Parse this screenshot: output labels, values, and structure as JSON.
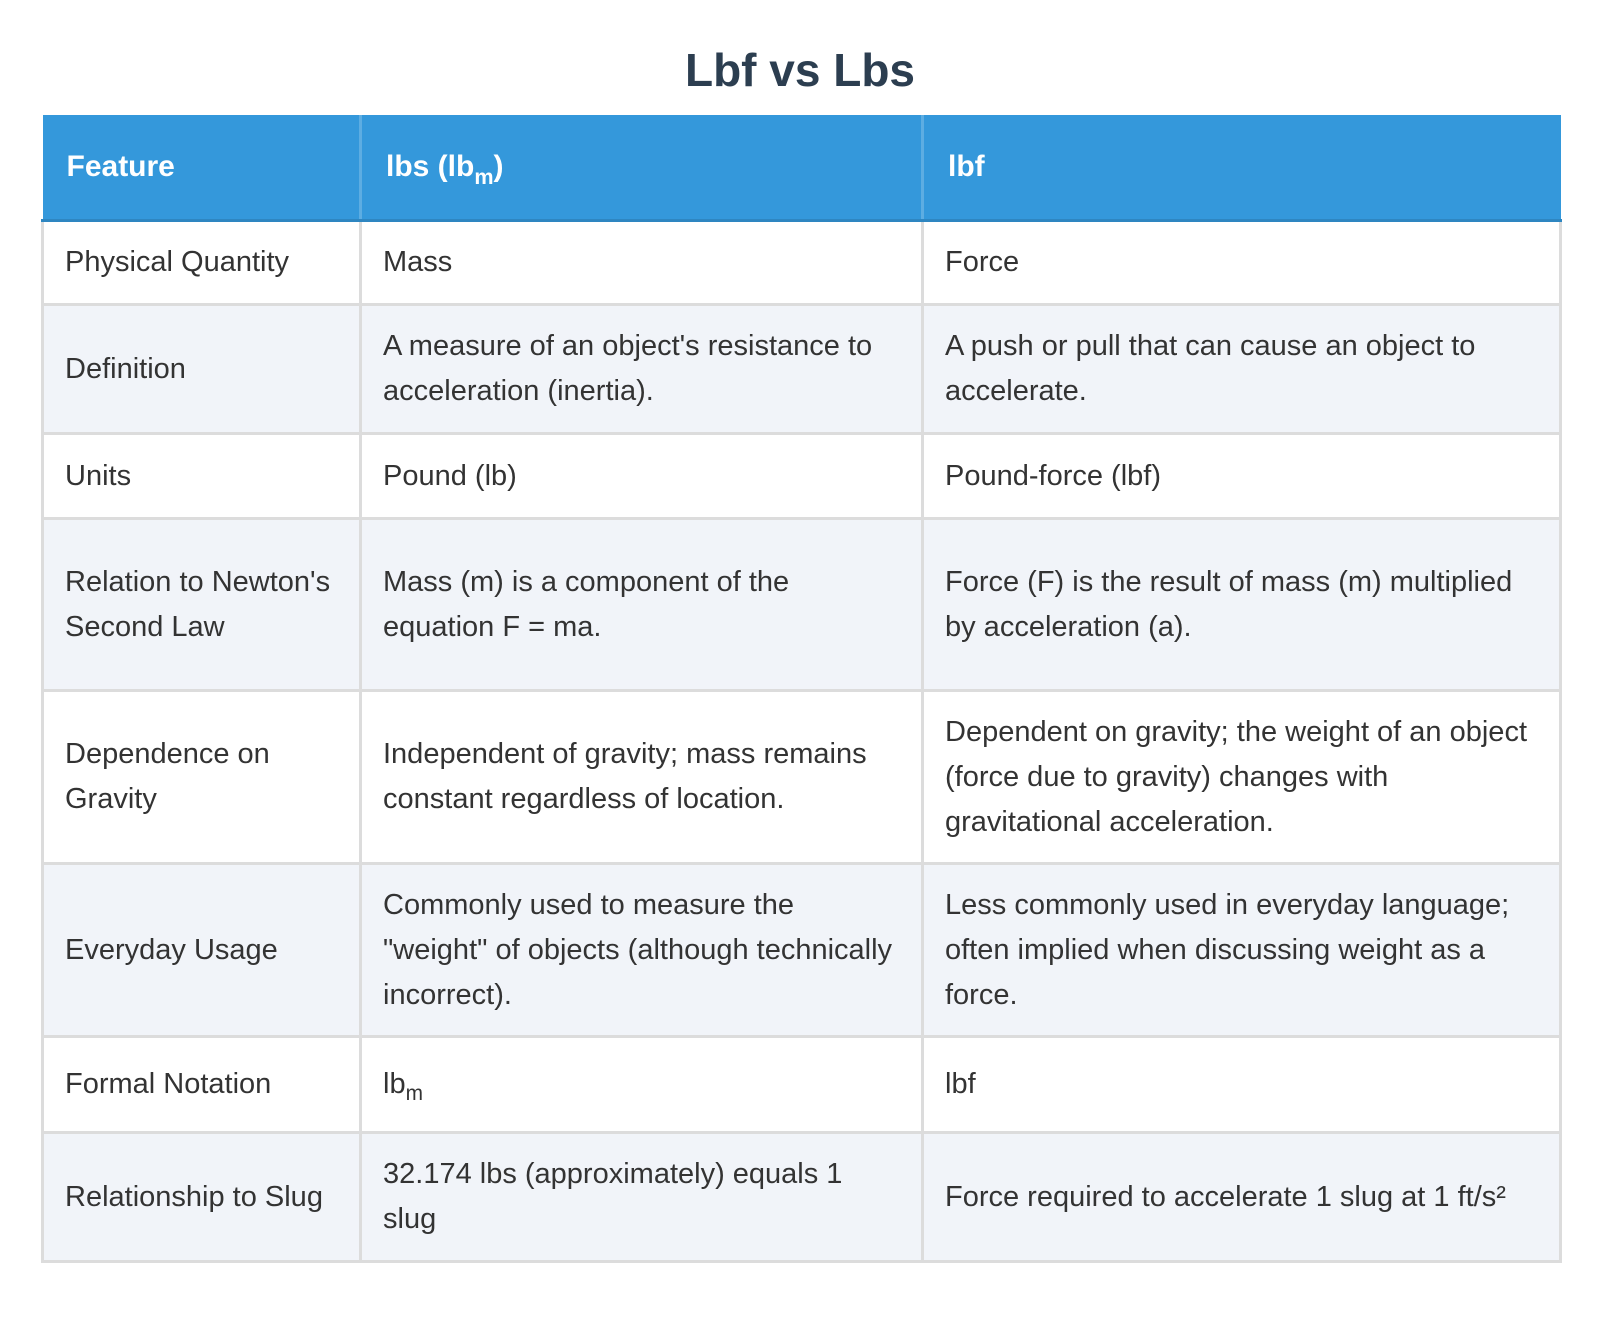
{
  "title": "Lbf vs Lbs",
  "table": {
    "headers": {
      "feature": "Feature",
      "lbs_base": "lbs (lb",
      "lbs_sub": "m",
      "lbs_close": ")",
      "lbf": "lbf"
    },
    "rows": [
      {
        "feature": "Physical Quantity",
        "lbs": "Mass",
        "lbf": "Force"
      },
      {
        "feature": "Definition",
        "lbs": "A measure of an object's resistance to acceleration (inertia).",
        "lbf": "A push or pull that can cause an object to accelerate."
      },
      {
        "feature": "Units",
        "lbs": "Pound (lb)",
        "lbf": "Pound-force (lbf)"
      },
      {
        "feature": "Relation to Newton's Second Law",
        "lbs": "Mass (m) is a component of the equation F = ma.",
        "lbf": "Force (F) is the result of mass (m) multiplied by acceleration (a)."
      },
      {
        "feature": "Dependence on Gravity",
        "lbs": "Independent of gravity; mass remains constant regardless of location.",
        "lbf": "Dependent on gravity; the weight of an object (force due to gravity) changes with gravitational acceleration."
      },
      {
        "feature": "Everyday Usage",
        "lbs": "Commonly used to measure the \"weight\" of objects (although technically incorrect).",
        "lbf": "Less commonly used in everyday language; often implied when discussing weight as a force."
      },
      {
        "feature": "Formal Notation",
        "lbs_base": "lb",
        "lbs_sub": "m",
        "lbf": "lbf"
      },
      {
        "feature": "Relationship to Slug",
        "lbs": "32.174 lbs (approximately) equals 1 slug",
        "lbf": "Force required to accelerate 1 slug at 1 ft/s²"
      }
    ]
  }
}
